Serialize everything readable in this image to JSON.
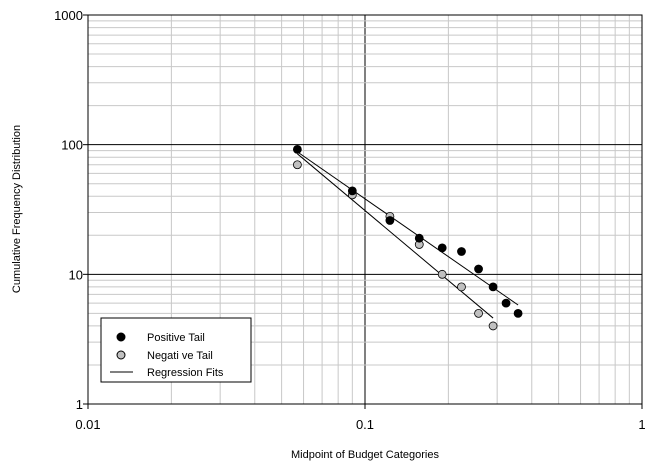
{
  "chart_data": {
    "type": "scatter",
    "xlabel": "Midpoint of Budget Categories",
    "ylabel": "Cumulative Frequency Distribution",
    "x_scale": "log",
    "y_scale": "log",
    "xlim": [
      0.01,
      1
    ],
    "ylim": [
      1,
      1000
    ],
    "x_ticks": [
      0.01,
      0.1,
      1
    ],
    "x_tick_labels": [
      "0.01",
      "0.1",
      "1"
    ],
    "y_ticks": [
      1,
      10,
      100,
      1000
    ],
    "y_tick_labels": [
      "1",
      "10",
      "100",
      "1000"
    ],
    "grid": "on (major and minor)",
    "legend_position": "bottom-left",
    "series": [
      {
        "name": "Positive Tail",
        "marker": "filled-black-circle",
        "color": "#000000",
        "x": [
          0.057,
          0.09,
          0.123,
          0.157,
          0.19,
          0.223,
          0.257,
          0.29,
          0.323,
          0.357
        ],
        "y": [
          92,
          44,
          26,
          19,
          16,
          15,
          11,
          8,
          6,
          5
        ]
      },
      {
        "name": "Negati ve Tail",
        "marker": "gray-circle",
        "color": "#c0c0c0",
        "x": [
          0.057,
          0.09,
          0.123,
          0.157,
          0.19,
          0.223,
          0.257,
          0.29
        ],
        "y": [
          70,
          41,
          28,
          17,
          10,
          8,
          5,
          4
        ]
      }
    ],
    "regression_fits": {
      "name": "Regression Fits",
      "lines": [
        {
          "series": "Positive Tail",
          "x": [
            0.057,
            0.357
          ],
          "y": [
            88,
            5.8
          ]
        },
        {
          "series": "Negati ve Tail",
          "x": [
            0.057,
            0.29
          ],
          "y": [
            85,
            4.6
          ]
        }
      ]
    }
  }
}
